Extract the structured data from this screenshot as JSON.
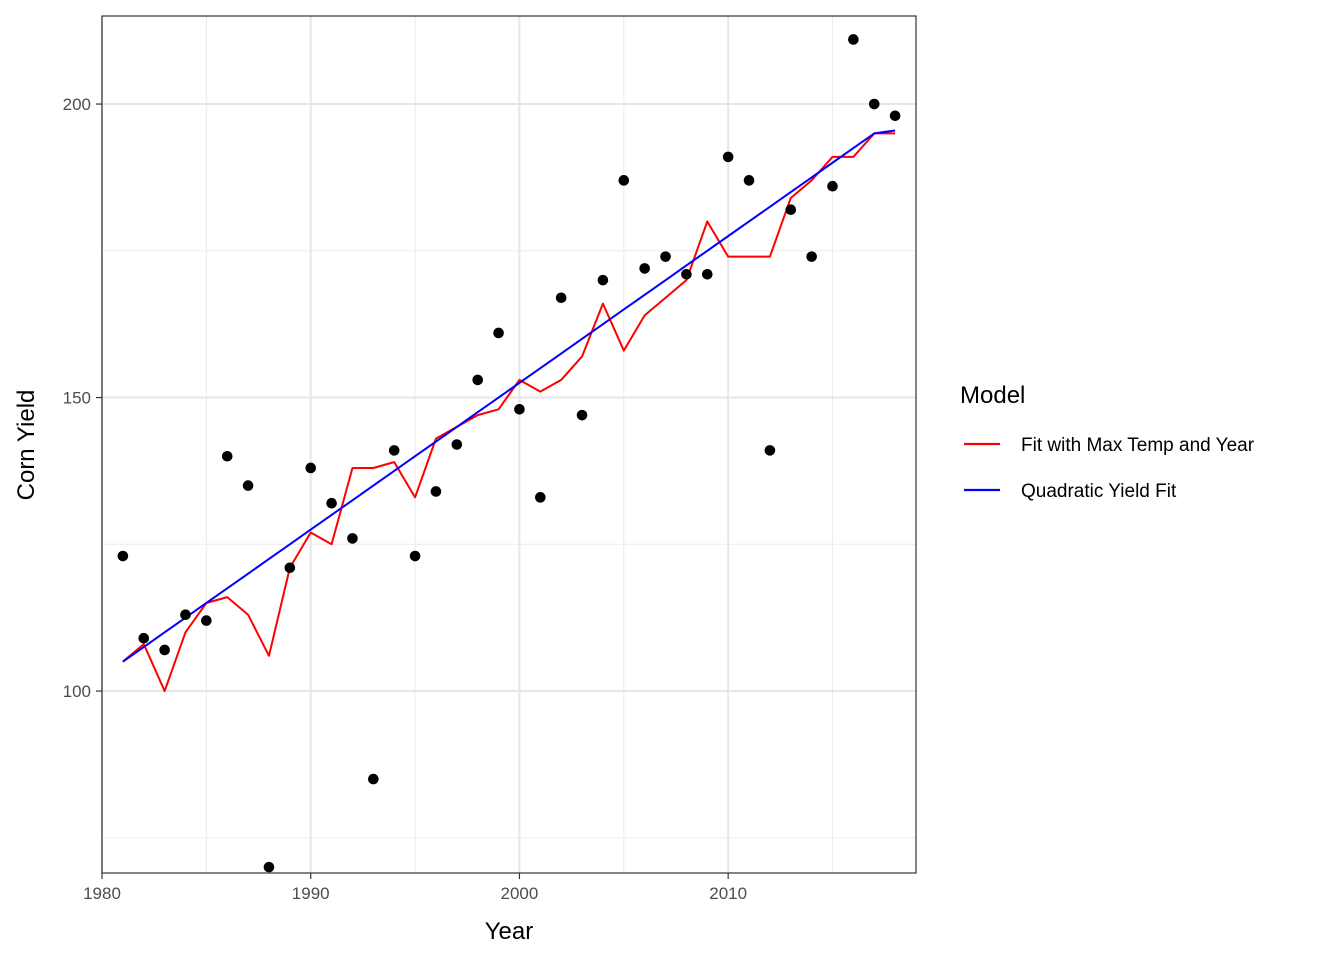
{
  "chart_data": {
    "type": "scatter",
    "title": "",
    "xlabel": "Year",
    "ylabel": "Corn Yield",
    "xlim": [
      1980,
      2019
    ],
    "ylim": [
      69,
      215
    ],
    "x_ticks": [
      1980,
      1990,
      2000,
      2010
    ],
    "y_ticks": [
      100,
      150,
      200
    ],
    "grid": true,
    "legend": {
      "title": "Model",
      "placement": "right",
      "entries": [
        {
          "label": "Fit with Max Temp and Year",
          "color": "#ff0000"
        },
        {
          "label": "Quadratic Yield Fit",
          "color": "#0000ff"
        }
      ]
    },
    "points": {
      "color": "#000000",
      "x": [
        1981,
        1982,
        1983,
        1984,
        1985,
        1986,
        1987,
        1988,
        1989,
        1990,
        1991,
        1992,
        1993,
        1994,
        1995,
        1996,
        1997,
        1998,
        1999,
        2000,
        2001,
        2002,
        2003,
        2004,
        2005,
        2006,
        2007,
        2008,
        2009,
        2010,
        2011,
        2012,
        2013,
        2014,
        2015,
        2016,
        2017,
        2018
      ],
      "y": [
        123,
        109,
        107,
        113,
        112,
        140,
        135,
        70,
        121,
        138,
        132,
        126,
        85,
        141,
        123,
        134,
        142,
        153,
        161,
        148,
        133,
        167,
        147,
        170,
        187,
        172,
        174,
        171,
        171,
        191,
        187,
        141,
        182,
        174,
        186,
        211,
        200,
        198
      ]
    },
    "series": [
      {
        "name": "Fit with Max Temp and Year",
        "color": "#ff0000",
        "x": [
          1981,
          1982,
          1983,
          1984,
          1985,
          1986,
          1987,
          1988,
          1989,
          1990,
          1991,
          1992,
          1993,
          1994,
          1995,
          1996,
          1997,
          1998,
          1999,
          2000,
          2001,
          2002,
          2003,
          2004,
          2005,
          2006,
          2007,
          2008,
          2009,
          2010,
          2011,
          2012,
          2013,
          2014,
          2015,
          2016,
          2017,
          2018
        ],
        "y": [
          105,
          108,
          100,
          110,
          115,
          116,
          113,
          106,
          121,
          127,
          125,
          138,
          138,
          139,
          133,
          143,
          145,
          147,
          148,
          153,
          151,
          153,
          157,
          166,
          158,
          164,
          167,
          170,
          180,
          174,
          174,
          174,
          184,
          187,
          191,
          191,
          195,
          195
        ]
      },
      {
        "name": "Quadratic Yield Fit",
        "color": "#0000ff",
        "x": [
          1981,
          1982,
          1983,
          1984,
          1985,
          1986,
          1987,
          1988,
          1989,
          1990,
          1991,
          1992,
          1993,
          1994,
          1995,
          1996,
          1997,
          1998,
          1999,
          2000,
          2001,
          2002,
          2003,
          2004,
          2005,
          2006,
          2007,
          2008,
          2009,
          2010,
          2011,
          2012,
          2013,
          2014,
          2015,
          2016,
          2017,
          2018
        ],
        "y": [
          105,
          107.5,
          110,
          112.5,
          115,
          117.5,
          120,
          122.5,
          125,
          127.5,
          130,
          132.5,
          135,
          137.5,
          140,
          142.5,
          145,
          147.5,
          150,
          152.5,
          155,
          157.5,
          160,
          162.5,
          165,
          167.5,
          170,
          172.5,
          175,
          177.5,
          180,
          182.5,
          185,
          187.5,
          190,
          192.5,
          195,
          195.5
        ]
      }
    ]
  }
}
